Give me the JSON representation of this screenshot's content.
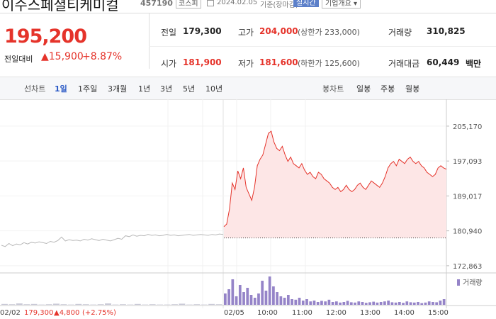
{
  "header": {
    "title": "이수스페셜티케미컬",
    "code": "457190",
    "market": "코스피",
    "date": "2024.02.05",
    "date_note": "기준(장마감)",
    "realtime": "실시간",
    "company_info": "기업개요 ▾"
  },
  "price": {
    "current": "195,200",
    "change_label": "전일대비",
    "change": "▲15,900",
    "change_rate": "+8.87%"
  },
  "table": {
    "rows": [
      [
        {
          "label": "전일",
          "value": "179,300"
        },
        {
          "label": "고가",
          "value": "204,000",
          "note": "(상한가 233,000)"
        },
        {
          "label": "거래량",
          "value": "310,825"
        }
      ],
      [
        {
          "label": "시가",
          "value": "181,900"
        },
        {
          "label": "저가",
          "value": "181,600",
          "note": "(하한가 125,600)"
        },
        {
          "label": "거래대금",
          "value": "60,449",
          "note": "백만"
        }
      ]
    ]
  },
  "toolbar": {
    "line_chart": "선차트",
    "periods": [
      "1일",
      "1주일",
      "3개월",
      "1년",
      "3년",
      "5년",
      "10년"
    ],
    "selected": 0,
    "candle_chart": "봉차트",
    "candles": [
      "일봉",
      "주봉",
      "월봉"
    ]
  },
  "chart_data": {
    "type": "line",
    "ylim": [
      171200,
      209750
    ],
    "yticks": [
      {
        "value": 205170,
        "label": "205,170"
      },
      {
        "value": 197093,
        "label": "197,093"
      },
      {
        "value": 189017,
        "label": "189,017"
      },
      {
        "value": 180940,
        "label": "180,940"
      },
      {
        "value": 172863,
        "label": "172,863"
      }
    ],
    "prev_close": 179300,
    "series": [
      {
        "color": "#b8b8b8",
        "values": [
          177600,
          177300,
          178000,
          177500,
          177900,
          177700,
          178200,
          177900,
          178300,
          178100,
          178400,
          178200,
          178000,
          178500,
          178300,
          178700,
          179500,
          178600,
          178900,
          178700,
          178800,
          178600,
          179000,
          178800,
          179100,
          178900,
          178700,
          179000,
          178800,
          178600,
          178900,
          179200,
          179000,
          179800,
          179600,
          180000,
          179700,
          179900,
          179800,
          180100,
          179900,
          180000,
          179800,
          179900,
          180100,
          179900,
          180000,
          179800,
          179900,
          180000,
          180100,
          179900,
          180000,
          180100,
          180000,
          179900,
          180100,
          180000,
          180200,
          180100
        ]
      },
      {
        "color": "#e5332a",
        "fill": "#fde6e6",
        "values": [
          181900,
          182500,
          186000,
          192000,
          190500,
          194800,
          193000,
          195500,
          191000,
          189500,
          188000,
          191000,
          196000,
          197500,
          198500,
          201000,
          203500,
          204000,
          201500,
          200000,
          199500,
          200500,
          198500,
          197000,
          198000,
          196500,
          196000,
          195500,
          196500,
          195000,
          194000,
          194500,
          193500,
          193000,
          194500,
          194000,
          193000,
          192500,
          192000,
          191000,
          190500,
          191000,
          190000,
          190500,
          191500,
          190500,
          190000,
          190500,
          191500,
          192000,
          191000,
          190500,
          191500,
          192500,
          192000,
          191500,
          191000,
          192000,
          193500,
          195500,
          196500,
          197000,
          196000,
          197500,
          197000,
          196500,
          197500,
          198000,
          197000,
          196500,
          197000,
          196000,
          195500,
          194500,
          194000,
          193500,
          194000,
          195500,
          196000,
          195500,
          195200
        ]
      }
    ],
    "volume": {
      "name": "거래량",
      "color": "#9584c8",
      "ylim": [
        0,
        100
      ],
      "prev": [
        3,
        2,
        5,
        2,
        3,
        1,
        2,
        4,
        2,
        1,
        3,
        2,
        1,
        2,
        5,
        1,
        2,
        1,
        3,
        1,
        2,
        1,
        1,
        2,
        4,
        1,
        2,
        1,
        3,
        2
      ],
      "values": [
        40,
        55,
        90,
        30,
        70,
        45,
        60,
        35,
        25,
        40,
        85,
        50,
        100,
        65,
        45,
        30,
        25,
        35,
        20,
        18,
        25,
        15,
        20,
        12,
        15,
        10,
        14,
        12,
        18,
        10,
        12,
        8,
        10,
        14,
        9,
        8,
        12,
        10,
        7,
        9,
        11,
        8,
        10,
        12,
        15,
        9,
        8,
        10,
        7,
        12,
        9,
        8,
        10,
        6,
        8,
        12,
        10,
        9,
        15,
        20
      ]
    },
    "x_labels": [
      "02/02",
      "02/05",
      "10:00",
      "11:00",
      "12:00",
      "13:00",
      "14:00",
      "15:00"
    ],
    "footer": {
      "date": "02/02",
      "close": "179,300",
      "change": "▲4,800",
      "rate": "(+2.75%)"
    }
  }
}
